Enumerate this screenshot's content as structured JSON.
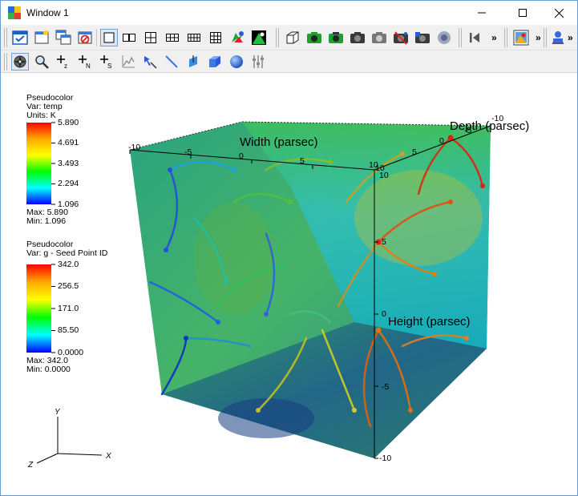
{
  "window": {
    "title": "Window 1",
    "minimize_glyph": "—",
    "maximize_glyph": "☐",
    "close_glyph": "✕"
  },
  "toolbar1": {
    "more_glyph_1": "»",
    "more_glyph_2": "»",
    "more_glyph_3": "»",
    "buttons": [
      "active-window-icon",
      "new-window-icon",
      "clone-window-icon",
      "delete-window-icon",
      "layout-1x1-icon",
      "layout-1x2-icon",
      "layout-2x2-icon",
      "layout-2x3-icon",
      "layout-3x2-icon",
      "layout-3x3-icon",
      "lock-view-icon",
      "lock-time-icon",
      "perspective-icon",
      "camera-a-icon",
      "camera-b-icon",
      "camera-c-icon",
      "camera-d-icon",
      "camera-e-icon",
      "camera-f-icon",
      "camera-g-icon",
      "animation-back-icon",
      "plot-list-icon",
      "tools-icon"
    ]
  },
  "toolbar2": {
    "buttons": [
      "navigate-icon",
      "zoom-icon",
      "zone-pick-icon",
      "node-pick-icon",
      "spreadsheet-pick-icon",
      "lineout-icon",
      "pick-line-icon",
      "line-icon",
      "plane-icon",
      "box-icon",
      "sphere-icon",
      "axis-restrict-icon"
    ]
  },
  "legend1": {
    "title": "Pseudocolor",
    "var": "Var: temp",
    "units": "Units: K",
    "ticks": [
      "5.890",
      "4.691",
      "3.493",
      "2.294",
      "1.096"
    ],
    "max": "Max:  5.890",
    "min": "Min:  1.096"
  },
  "legend2": {
    "title": "Pseudocolor",
    "var": "Var: g - Seed Point ID",
    "ticks": [
      "342.0",
      "256.5",
      "171.0",
      "85.50",
      "0.0000"
    ],
    "max": "Max:  342.0",
    "min": "Min:  0.0000"
  },
  "axes": {
    "width_title": "Width (parsec)",
    "depth_title": "Depth (parsec)",
    "height_title": "Height (parsec)",
    "width_labels": [
      "-10",
      "-5",
      "0",
      "5",
      "10"
    ],
    "depth_labels": [
      "-10",
      "-5",
      "0",
      "5",
      "10"
    ],
    "height_labels": [
      "10",
      "5",
      "0",
      "-5",
      "-10"
    ]
  },
  "triad": {
    "x": "X",
    "y": "Y",
    "z": "Z"
  },
  "colors": {
    "window_border": "#6b9bd1",
    "toolbar_bg": "#f0f0f0",
    "colormap": [
      "#ff0000",
      "#ffaa00",
      "#ffff00",
      "#00ff00",
      "#00ffff",
      "#0000ff"
    ]
  }
}
